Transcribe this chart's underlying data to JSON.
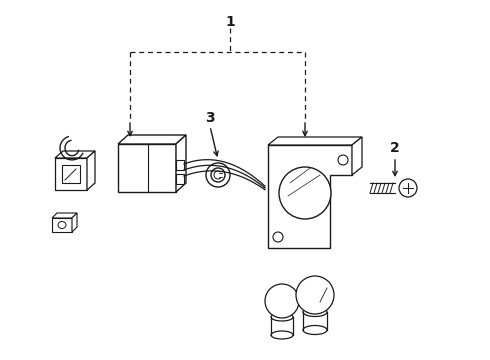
{
  "background_color": "#ffffff",
  "line_color": "#1a1a1a",
  "label1": "1",
  "label2": "2",
  "label3": "3",
  "figsize": [
    4.9,
    3.6
  ],
  "dpi": 100
}
